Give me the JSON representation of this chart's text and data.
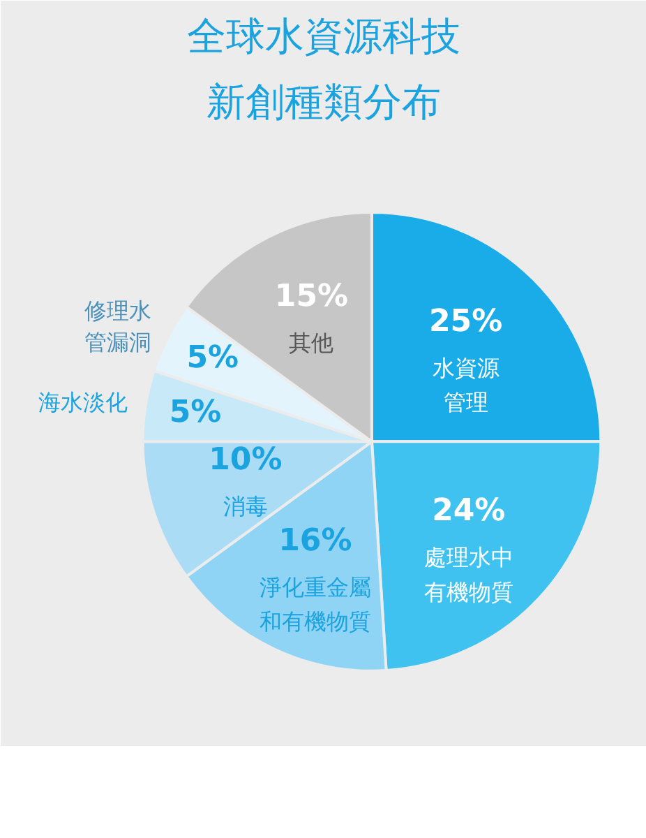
{
  "chart_data": {
    "type": "pie",
    "title": "全球水資源科技",
    "subtitle": "新創種類分布",
    "categories": [
      "水資源管理",
      "處理水中有機物質",
      "淨化重金屬和有機物質",
      "消毒",
      "海水淡化",
      "修理水管漏洞",
      "其他"
    ],
    "values": [
      25,
      24,
      16,
      10,
      5,
      5,
      15
    ],
    "colors": [
      "#1aace8",
      "#3fc2f0",
      "#8fd4f4",
      "#aadcf5",
      "#c8e9f8",
      "#e4f4fc",
      "#c6c6c6"
    ],
    "value_labels": [
      "25%",
      "24%",
      "16%",
      "10%",
      "5%",
      "5%",
      "15%"
    ]
  }
}
